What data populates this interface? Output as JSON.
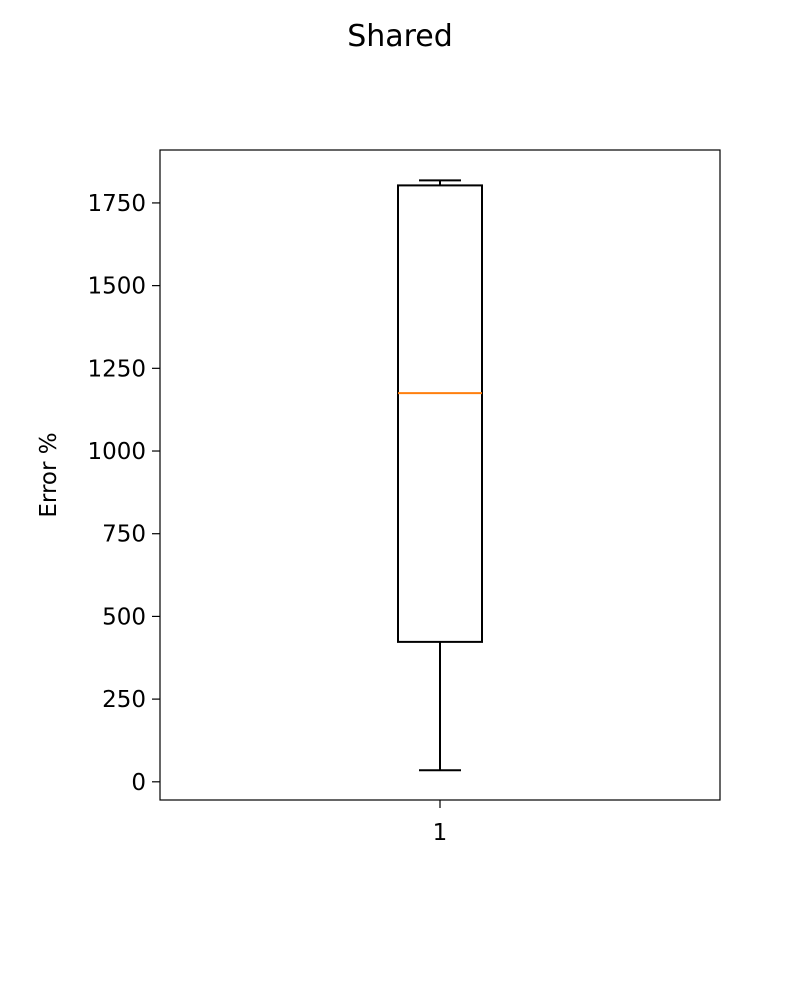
{
  "chart_data": {
    "type": "box",
    "title": "Shared",
    "xlabel": "",
    "ylabel": "Error %",
    "categories": [
      "1"
    ],
    "ylim": [
      -55,
      1910
    ],
    "yticks": [
      0,
      250,
      500,
      750,
      1000,
      1250,
      1500,
      1750
    ],
    "grid": false,
    "colors": {
      "box": "#000000",
      "median": "#ff7f0e",
      "axes": "#000000"
    },
    "boxes": [
      {
        "category": "1",
        "whisker_low": 35,
        "q1": 423,
        "median": 1175,
        "q3": 1803,
        "whisker_high": 1818
      }
    ]
  }
}
